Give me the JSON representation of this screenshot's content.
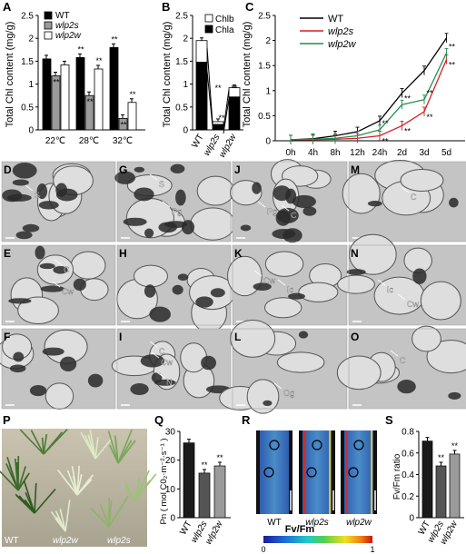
{
  "panels": {
    "A": "A",
    "B": "B",
    "C": "C",
    "D": "D",
    "E": "E",
    "F": "F",
    "G": "G",
    "H": "H",
    "I": "I",
    "J": "J",
    "K": "K",
    "L": "L",
    "M": "M",
    "N": "N",
    "O": "O",
    "P": "P",
    "Q": "Q",
    "R": "R",
    "S": "S"
  },
  "micrograph_labels": {
    "D_S": "S",
    "G_S": "S",
    "G_Pg": "Pg",
    "J_Pg": "Pg",
    "J_C": "C",
    "M_C": "C",
    "E_C": "C",
    "E_Cw": "Cw",
    "K_Cw": "Cw",
    "K_Ic": "Ic",
    "N_Ic": "Ic",
    "N_Cw": "Cw",
    "I_C": "C",
    "I_Cw": "Cw",
    "I_N": "N",
    "L_Og": "Og",
    "O_C": "C"
  },
  "photo_labels": {
    "WT": "WT",
    "wlp2w": "wlp2w",
    "wlp2s": "wlp2s"
  },
  "colors": {
    "wt": "#000000",
    "wlp2s": "#d41f26",
    "wlp2w": "#1f8f4e",
    "gray": "#9a9a9a"
  },
  "chart_data": [
    {
      "panel": "A",
      "type": "bar",
      "ylabel": "Total Chl content (mg/g)",
      "ylim": [
        0,
        2.5
      ],
      "yticks": [
        "0",
        "0.5",
        "1",
        "1.5",
        "2",
        "2.5"
      ],
      "categories": [
        "22℃",
        "28℃",
        "32℃"
      ],
      "series": [
        {
          "name": "WT",
          "values": [
            1.55,
            1.58,
            1.8
          ]
        },
        {
          "name": "wlp2s",
          "values": [
            1.18,
            0.75,
            0.25
          ]
        },
        {
          "name": "wlp2w",
          "values": [
            1.42,
            1.33,
            0.6
          ]
        }
      ],
      "significance": [
        [
          "",
          "**",
          "**"
        ],
        [
          "**",
          "**",
          "**"
        ],
        [
          "",
          "**",
          "**"
        ]
      ],
      "sig_mark": "**"
    },
    {
      "panel": "B",
      "type": "bar",
      "ylabel": "Total Chl content (mg/g)",
      "ylim": [
        0,
        2.5
      ],
      "yticks": [
        "0",
        "0.5",
        "1",
        "1.5",
        "2",
        "2.5"
      ],
      "categories": [
        "WT",
        "wlp2s",
        "wlp2w"
      ],
      "series": [
        {
          "name": "Chla",
          "values": [
            1.48,
            0.12,
            0.72
          ]
        },
        {
          "name": "Chlb",
          "values": [
            0.47,
            0.06,
            0.2
          ]
        }
      ],
      "sig_mark": "**"
    },
    {
      "panel": "C",
      "type": "line",
      "ylabel": "Total Chl content (mg/g)",
      "ylim": [
        0,
        2.5
      ],
      "yticks": [
        "0",
        "0.5",
        "1",
        "1.5",
        "2",
        "2.5"
      ],
      "categories": [
        "0h",
        "4h",
        "8h",
        "12h",
        "24h",
        "2d",
        "3d",
        "5d"
      ],
      "series": [
        {
          "name": "WT",
          "values": [
            0.02,
            0.04,
            0.1,
            0.18,
            0.4,
            0.95,
            1.4,
            2.05
          ]
        },
        {
          "name": "wlp2s",
          "values": [
            0.02,
            0.02,
            0.03,
            0.05,
            0.1,
            0.3,
            0.58,
            1.62
          ]
        },
        {
          "name": "wlp2w",
          "values": [
            0.02,
            0.03,
            0.05,
            0.1,
            0.22,
            0.72,
            0.82,
            1.75
          ]
        }
      ],
      "sig_mark": "**"
    },
    {
      "panel": "Q",
      "type": "bar",
      "ylabel": "Pn ( mol C0₂·m⁻²·s⁻¹ )",
      "ylim": [
        0,
        30
      ],
      "yticks": [
        "0",
        "10",
        "20",
        "30"
      ],
      "categories": [
        "WT",
        "wlp2s",
        "wlp2w"
      ],
      "values": [
        26,
        15.5,
        18
      ],
      "significance": [
        "",
        "**",
        "**"
      ]
    },
    {
      "panel": "R",
      "type": "heatmap",
      "categories": [
        "WT",
        "wlp2s",
        "wlp2w"
      ],
      "colorbar_label": "Fv/Fm",
      "colorbar_min": "0",
      "colorbar_max": "1"
    },
    {
      "panel": "S",
      "type": "bar",
      "ylabel": "Fv/Fm ratio",
      "ylim": [
        0,
        0.8
      ],
      "yticks": [
        "0",
        "0.2",
        "0.4",
        "0.6",
        "0.8"
      ],
      "categories": [
        "WT",
        "wlp2s",
        "wlp2w"
      ],
      "values": [
        0.71,
        0.48,
        0.59
      ],
      "significance": [
        "",
        "**",
        "**"
      ]
    }
  ]
}
